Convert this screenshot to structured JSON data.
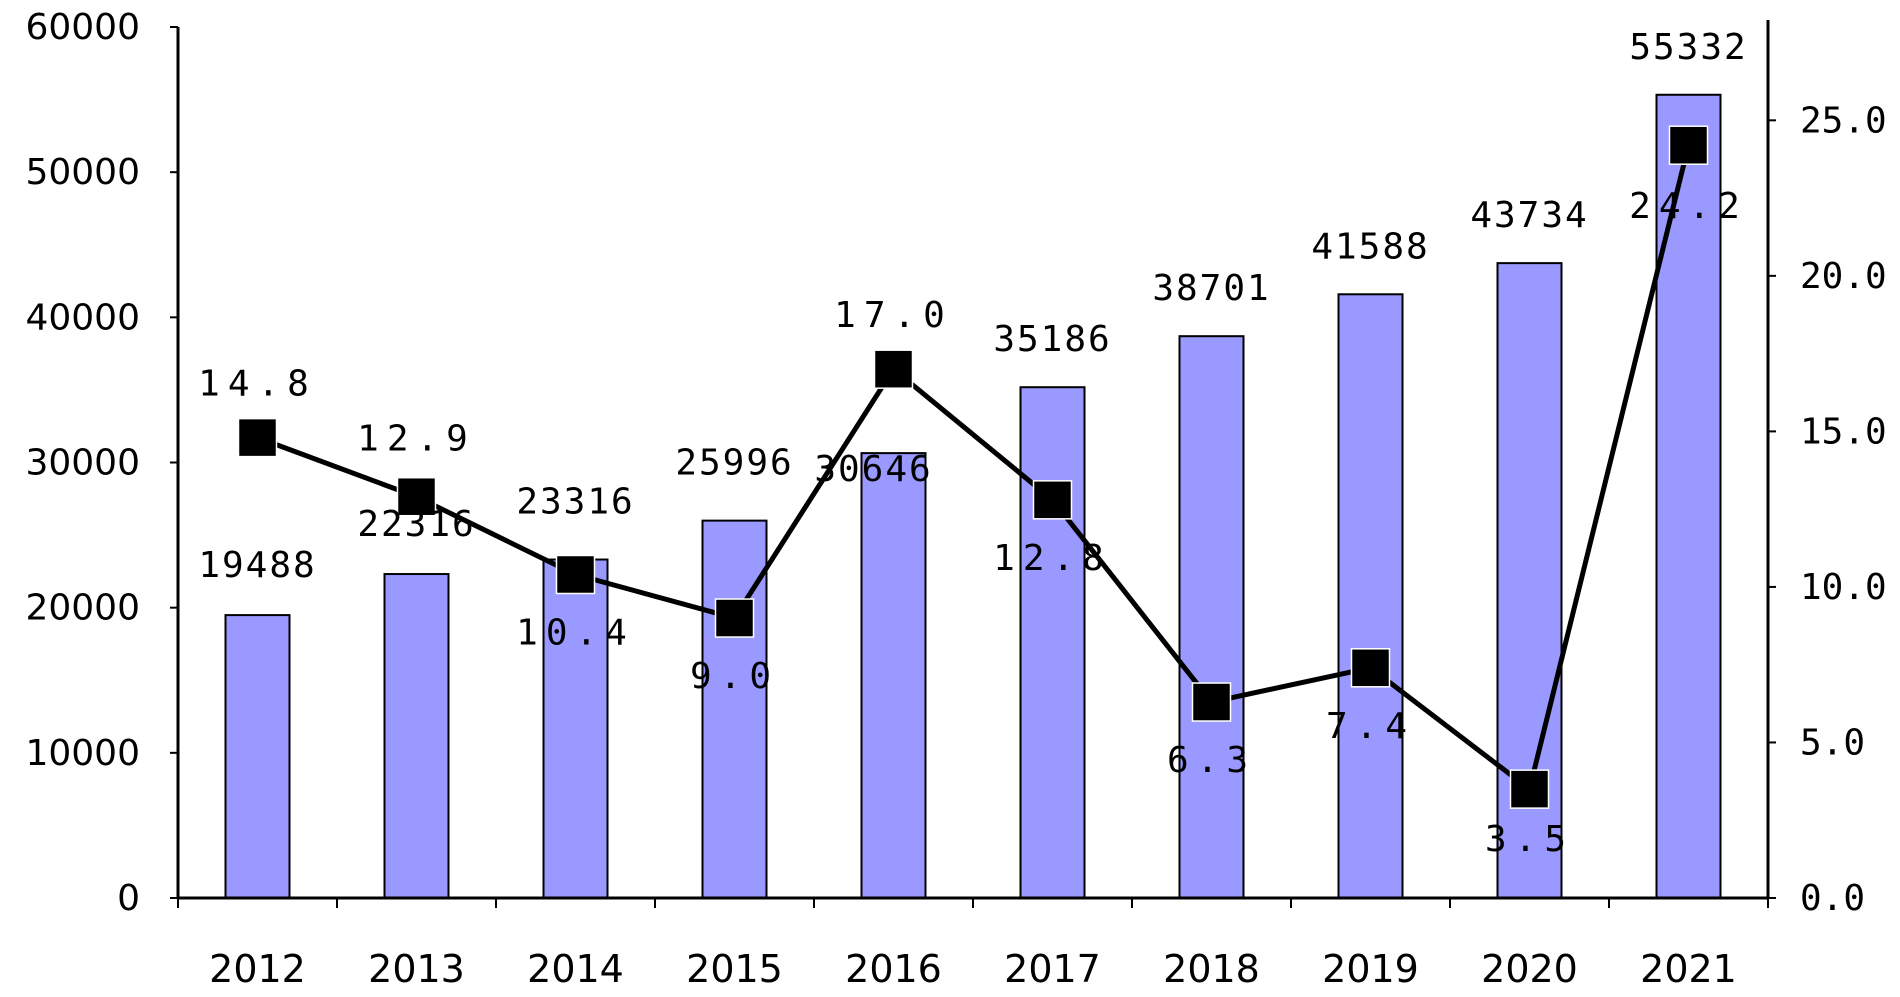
{
  "chart_data": {
    "type": "bar",
    "categories": [
      "2012",
      "2013",
      "2014",
      "2015",
      "2016",
      "2017",
      "2018",
      "2019",
      "2020",
      "2021"
    ],
    "series": [
      {
        "type": "bar",
        "axis": "left",
        "values": [
          19488,
          22316,
          23316,
          25996,
          30646,
          35186,
          38701,
          41588,
          43734,
          55332
        ],
        "labels": [
          "19488",
          "22316",
          "23316",
          "25996",
          "30646",
          "35186",
          "38701",
          "41588",
          "43734",
          "55332"
        ],
        "color": "#9999ff"
      },
      {
        "type": "line",
        "axis": "right",
        "values": [
          14.8,
          12.9,
          10.4,
          9.0,
          17.0,
          12.8,
          6.3,
          7.4,
          3.5,
          24.2
        ],
        "labels": [
          "14.8",
          "12.9",
          "10.4",
          "9.0",
          "17.0",
          "12.8",
          "6.3",
          "7.4",
          "3.5",
          "24.2"
        ],
        "color": "#000000",
        "marker": "square"
      }
    ],
    "left_axis": {
      "ylim": [
        0,
        60000
      ],
      "ticks": [
        "0",
        "10000",
        "20000",
        "30000",
        "40000",
        "50000",
        "60000"
      ]
    },
    "right_axis": {
      "ylim": [
        0,
        28
      ],
      "ticks": [
        "0.0",
        "5.0",
        "10.0",
        "15.0",
        "20.0",
        "25.0"
      ]
    },
    "title": "",
    "xlabel": "",
    "ylabel": "",
    "grid": false,
    "legend": "none"
  }
}
